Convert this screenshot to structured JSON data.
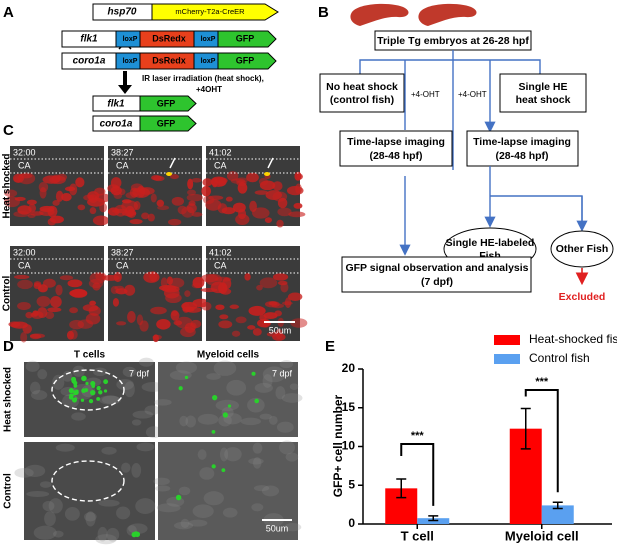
{
  "panel_labels": [
    "A",
    "B",
    "C",
    "D",
    "E"
  ],
  "panel_a": {
    "driver": "hsp70",
    "cassette": "mCherry-T2a-CreER",
    "rows": [
      {
        "gene": "flk1",
        "parts": [
          "loxP",
          "DsRedx",
          "loxP",
          "GFP"
        ]
      },
      {
        "gene": "coro1a",
        "parts": [
          "loxP",
          "DsRedx",
          "loxP",
          "GFP"
        ]
      }
    ],
    "treatment": [
      "IR laser irradiation (heat shock),",
      "+4OHT"
    ],
    "results": [
      {
        "gene": "flk1",
        "reporter": "GFP"
      },
      {
        "gene": "coro1a",
        "reporter": "GFP"
      }
    ]
  },
  "panel_b": {
    "start": "Triple Tg embryos at 26-28 hpf",
    "control": [
      "No heat shock",
      "(control fish)"
    ],
    "heat": [
      "Single HE",
      "heat shock"
    ],
    "drug_left": "+4-OHT",
    "drug_right": "+4-OHT",
    "imaging_left": [
      "Time-lapse imaging",
      "(28-48 hpf)"
    ],
    "imaging_right": [
      "Time-lapse imaging",
      "(28-48 hpf)"
    ],
    "labeled": [
      "Single HE-labeled",
      "Fish"
    ],
    "other": "Other Fish",
    "excluded": "Excluded",
    "analysis": [
      "GFP signal observation and analysis",
      "(7 dpf)"
    ]
  },
  "panel_c": {
    "times": [
      "32:00",
      "38:27",
      "41:02"
    ],
    "region": "CA",
    "rows": [
      "Heat shocked",
      "Control"
    ],
    "scale": "50um"
  },
  "panel_d": {
    "columns": [
      "T cells",
      "Myeloid cells"
    ],
    "stage": "7 dpf",
    "rows": [
      "Heat shocked",
      "Control"
    ],
    "scale": "50um"
  },
  "chart_data": {
    "type": "bar",
    "y_label": "GFP+ cell number",
    "categories": [
      "T cell",
      "Myeloid cell"
    ],
    "series": [
      {
        "name": "Heat-shocked fish",
        "color": "#ff0000",
        "values": [
          4.6,
          12.3
        ],
        "errors": [
          1.2,
          2.6
        ]
      },
      {
        "name": "Control fish",
        "color": "#5aa0f0",
        "values": [
          0.75,
          2.4
        ],
        "errors": [
          0.3,
          0.4
        ]
      }
    ],
    "ylim": [
      0,
      20
    ],
    "yticks": [
      0,
      5,
      10,
      15,
      20
    ],
    "annotations": [
      "***",
      "***"
    ],
    "legend": "top-right"
  }
}
